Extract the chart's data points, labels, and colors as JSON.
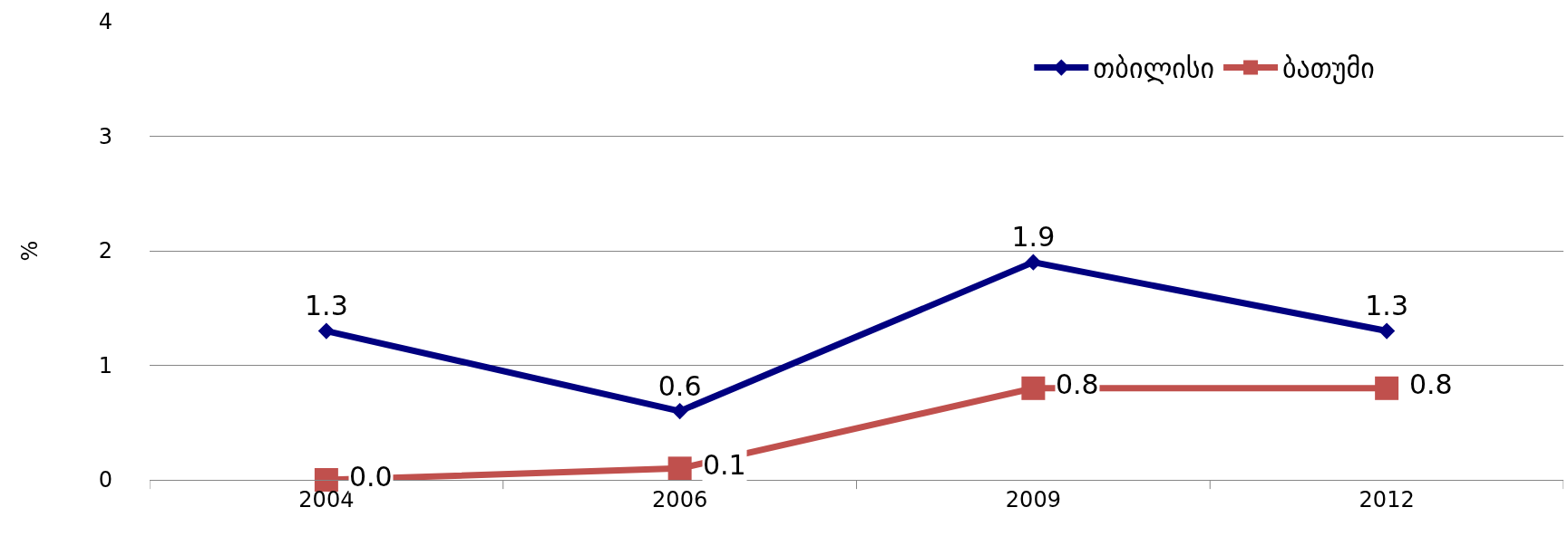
{
  "chart_data": {
    "type": "line",
    "ylabel": "%",
    "categories": [
      "2004",
      "2006",
      "2009",
      "2012"
    ],
    "series": [
      {
        "name": "თბილისი",
        "color": "#000080",
        "values": [
          1.3,
          0.6,
          1.9,
          1.3
        ],
        "value_labels": [
          "1.3",
          "0.6",
          "1.9",
          "1.3"
        ],
        "marker": "diamond"
      },
      {
        "name": "ბათუმი",
        "color": "#c0504d",
        "values": [
          0.0,
          0.1,
          0.8,
          0.8
        ],
        "value_labels": [
          "0.0",
          "0.1",
          "0.8",
          "0.8"
        ],
        "marker": "square"
      }
    ],
    "ylim": [
      0,
      4
    ],
    "yticks": [
      0,
      1,
      2,
      3,
      4
    ],
    "grid": "y",
    "legend": "top right"
  }
}
